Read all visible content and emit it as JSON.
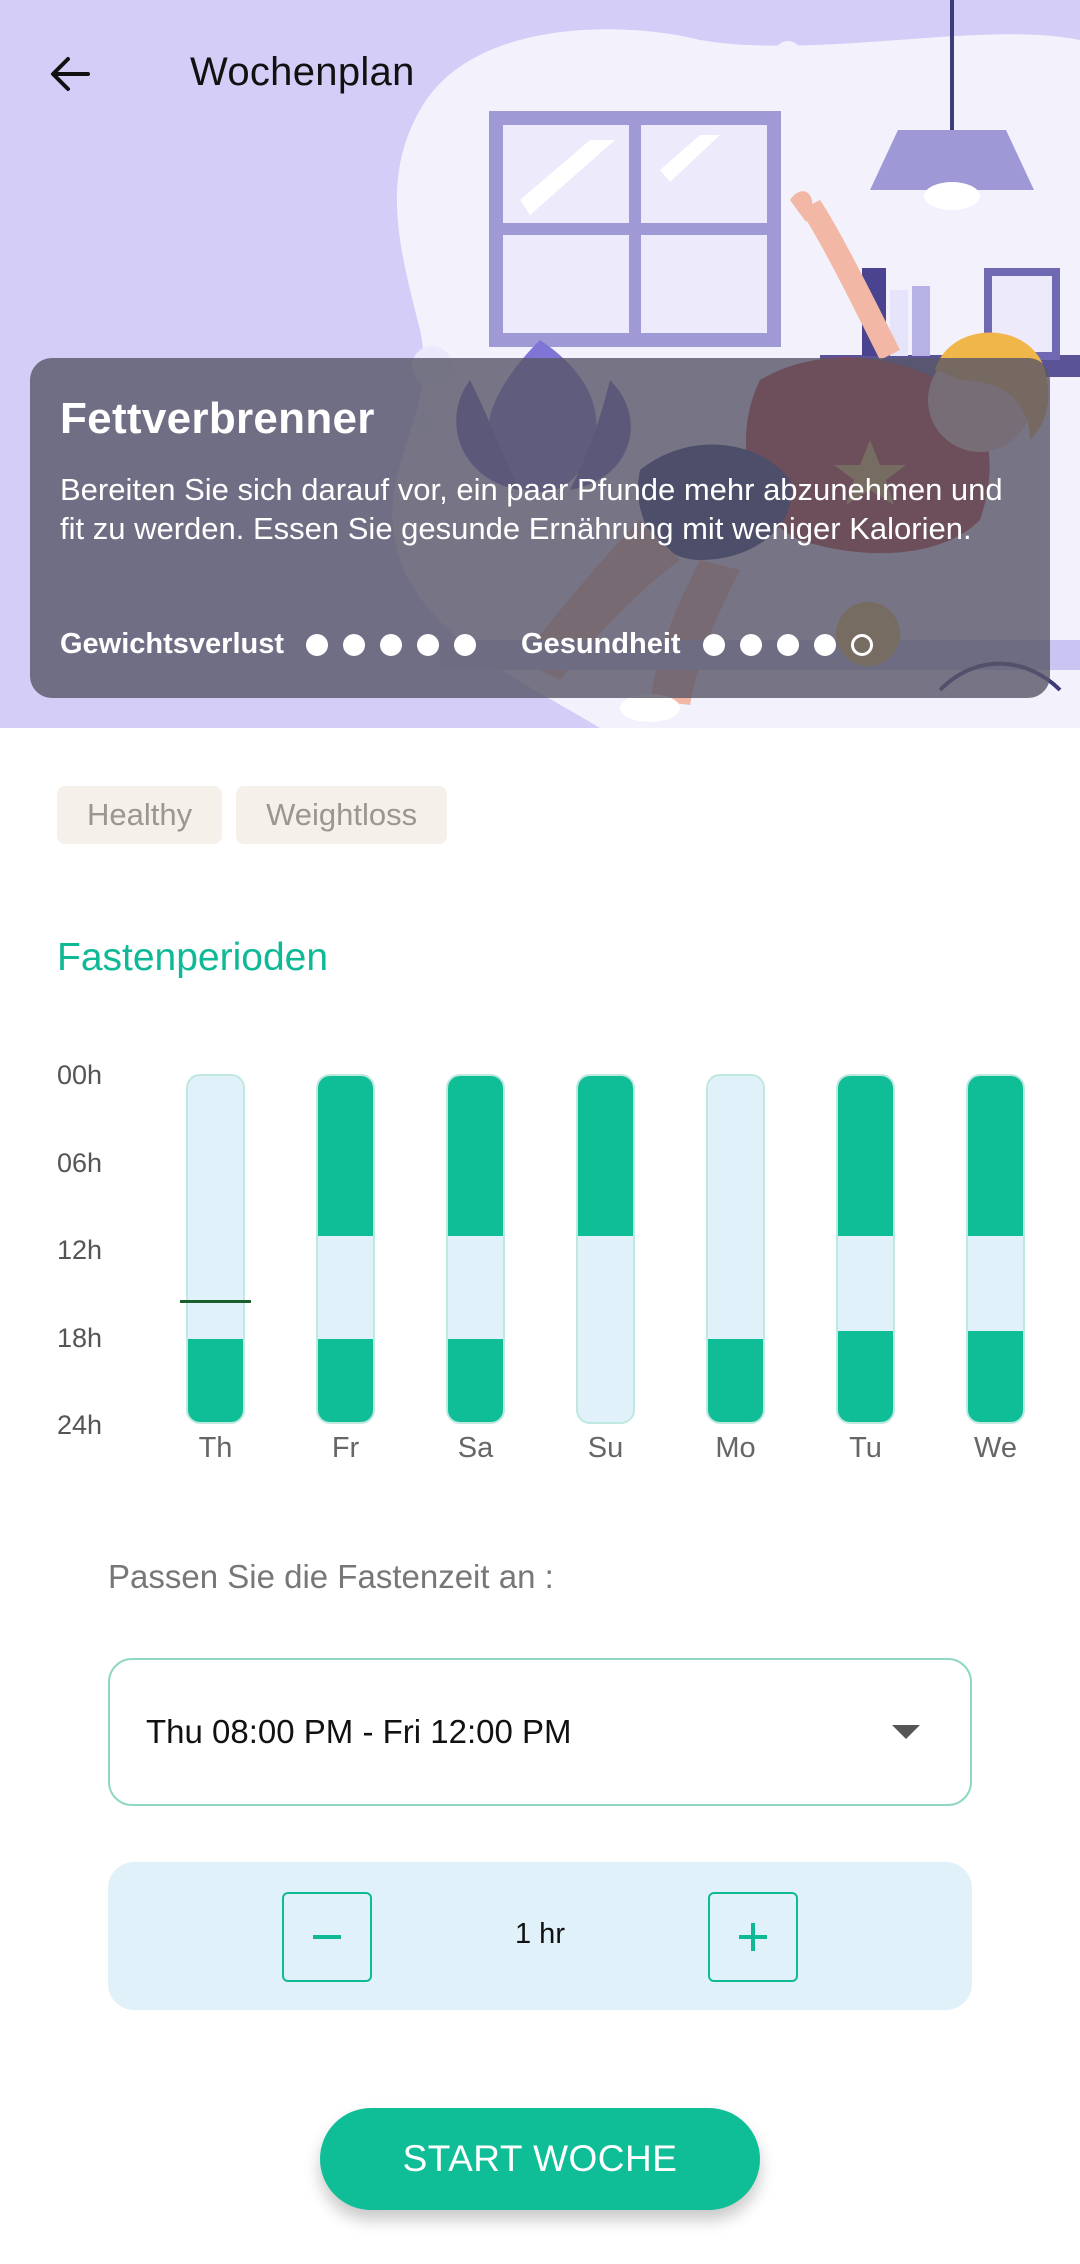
{
  "header": {
    "title": "Wochenplan"
  },
  "plan_card": {
    "title": "Fettverbrenner",
    "description": "Bereiten Sie sich darauf vor, ein paar Pfunde mehr abzunehmen und fit zu werden. Essen Sie gesunde Ernährung mit weniger Kalorien.",
    "ratings": [
      {
        "label": "Gewichtsverlust",
        "value": 5,
        "max": 5
      },
      {
        "label": "Gesundheit",
        "value": 4,
        "max": 5
      }
    ]
  },
  "tags": [
    "Healthy",
    "Weightloss"
  ],
  "section": {
    "title": "Fastenperioden"
  },
  "chart_data": {
    "type": "bar",
    "orientation": "vertical-range",
    "y_ticks": [
      "00h",
      "06h",
      "12h",
      "18h",
      "24h"
    ],
    "ylim": [
      0,
      24
    ],
    "categories": [
      "Th",
      "Fr",
      "Sa",
      "Su",
      "Mo",
      "Tu",
      "We"
    ],
    "fasting_periods_hours": [
      [
        [
          18,
          24
        ]
      ],
      [
        [
          0,
          11
        ],
        [
          18,
          24
        ]
      ],
      [
        [
          0,
          11
        ],
        [
          18,
          24
        ]
      ],
      [
        [
          0,
          11
        ]
      ],
      [
        [
          18,
          24
        ]
      ],
      [
        [
          0,
          11
        ],
        [
          17.5,
          24
        ]
      ],
      [
        [
          0,
          11
        ],
        [
          17.5,
          24
        ]
      ]
    ],
    "current_time_marker": {
      "category": "Th",
      "hour": 15.5
    },
    "colors": {
      "fasting": "#0fbe97",
      "eating": "#e1f1fa",
      "marker": "#1a5f2a"
    }
  },
  "adjust": {
    "label": "Passen Sie die Fastenzeit an :",
    "selected_period": "Thu 08:00 PM - Fri 12:00 PM",
    "step_value": "1 hr"
  },
  "actions": {
    "start_label": "START WOCHE"
  },
  "colors": {
    "accent": "#10b996",
    "hero_background": "#d3cdf7"
  }
}
